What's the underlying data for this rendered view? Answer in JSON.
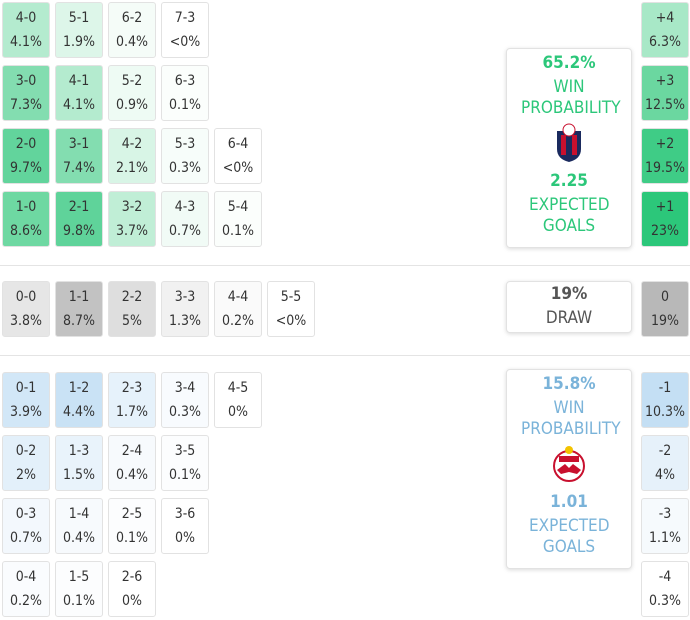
{
  "home": {
    "win_probability": "65.2%",
    "win_label": "WIN PROBABILITY",
    "expected_goals": "2.25",
    "xg_label": "EXPECTED GOALS",
    "rows": [
      [
        {
          "score": "4-0",
          "prob": "4.1%",
          "color": "#b4ebcf"
        },
        {
          "score": "5-1",
          "prob": "1.9%",
          "color": "#ddf6e9"
        },
        {
          "score": "6-2",
          "prob": "0.4%",
          "color": "#f5fcf8"
        },
        {
          "score": "7-3",
          "prob": "<0%",
          "color": "#ffffff"
        }
      ],
      [
        {
          "score": "3-0",
          "prob": "7.3%",
          "color": "#83ddb0"
        },
        {
          "score": "4-1",
          "prob": "4.1%",
          "color": "#b4ebcf"
        },
        {
          "score": "5-2",
          "prob": "0.9%",
          "color": "#eefbf4"
        },
        {
          "score": "6-3",
          "prob": "0.1%",
          "color": "#fbfefc"
        }
      ],
      [
        {
          "score": "2-0",
          "prob": "9.7%",
          "color": "#62d49c"
        },
        {
          "score": "3-1",
          "prob": "7.4%",
          "color": "#83ddb0"
        },
        {
          "score": "4-2",
          "prob": "2.1%",
          "color": "#d8f5e6"
        },
        {
          "score": "5-3",
          "prob": "0.3%",
          "color": "#f7fdfa"
        },
        {
          "score": "6-4",
          "prob": "<0%",
          "color": "#ffffff"
        }
      ],
      [
        {
          "score": "1-0",
          "prob": "8.6%",
          "color": "#6ed8a2"
        },
        {
          "score": "2-1",
          "prob": "9.8%",
          "color": "#5fd39a"
        },
        {
          "score": "3-2",
          "prob": "3.7%",
          "color": "#c0eed6"
        },
        {
          "score": "4-3",
          "prob": "0.7%",
          "color": "#f1fbf6"
        },
        {
          "score": "5-4",
          "prob": "0.1%",
          "color": "#fbfefc"
        }
      ]
    ],
    "margins": [
      {
        "score": "+4",
        "prob": "6.3%",
        "color": "#a8e8c7"
      },
      {
        "score": "+3",
        "prob": "12.5%",
        "color": "#6bd7a0"
      },
      {
        "score": "+2",
        "prob": "19.5%",
        "color": "#3fcc86"
      },
      {
        "score": "+1",
        "prob": "23%",
        "color": "#2cc77a"
      }
    ]
  },
  "draw": {
    "probability": "19%",
    "label": "DRAW",
    "rows": [
      [
        {
          "score": "0-0",
          "prob": "3.8%",
          "color": "#e6e6e6"
        },
        {
          "score": "1-1",
          "prob": "8.7%",
          "color": "#c2c2c2"
        },
        {
          "score": "2-2",
          "prob": "5%",
          "color": "#dedede"
        },
        {
          "score": "3-3",
          "prob": "1.3%",
          "color": "#f1f1f1"
        },
        {
          "score": "4-4",
          "prob": "0.2%",
          "color": "#fafafa"
        },
        {
          "score": "5-5",
          "prob": "<0%",
          "color": "#ffffff"
        }
      ]
    ],
    "margins": [
      {
        "score": "0",
        "prob": "19%",
        "color": "#b8b8b8"
      }
    ]
  },
  "away": {
    "win_probability": "15.8%",
    "win_label": "WIN PROBABILITY",
    "expected_goals": "1.01",
    "xg_label": "EXPECTED GOALS",
    "rows": [
      [
        {
          "score": "0-1",
          "prob": "3.9%",
          "color": "#d2e7f7"
        },
        {
          "score": "1-2",
          "prob": "4.4%",
          "color": "#c9e2f5"
        },
        {
          "score": "2-3",
          "prob": "1.7%",
          "color": "#e6f2fb"
        },
        {
          "score": "3-4",
          "prob": "0.3%",
          "color": "#f8fbfe"
        },
        {
          "score": "4-5",
          "prob": "0%",
          "color": "#ffffff"
        }
      ],
      [
        {
          "score": "0-2",
          "prob": "2%",
          "color": "#e3f0fa"
        },
        {
          "score": "1-3",
          "prob": "1.5%",
          "color": "#e9f3fb"
        },
        {
          "score": "2-4",
          "prob": "0.4%",
          "color": "#f7fafd"
        },
        {
          "score": "3-5",
          "prob": "0.1%",
          "color": "#fcfdfe"
        }
      ],
      [
        {
          "score": "0-3",
          "prob": "0.7%",
          "color": "#f3f8fd"
        },
        {
          "score": "1-4",
          "prob": "0.4%",
          "color": "#f7fafd"
        },
        {
          "score": "2-5",
          "prob": "0.1%",
          "color": "#fcfdfe"
        },
        {
          "score": "3-6",
          "prob": "0%",
          "color": "#ffffff"
        }
      ],
      [
        {
          "score": "0-4",
          "prob": "0.2%",
          "color": "#fafcfe"
        },
        {
          "score": "1-5",
          "prob": "0.1%",
          "color": "#fcfdfe"
        },
        {
          "score": "2-6",
          "prob": "0%",
          "color": "#ffffff"
        }
      ]
    ],
    "margins": [
      {
        "score": "-1",
        "prob": "10.3%",
        "color": "#c4dff4"
      },
      {
        "score": "-2",
        "prob": "4%",
        "color": "#e6f1fa"
      },
      {
        "score": "-3",
        "prob": "1.1%",
        "color": "#f6fafd"
      },
      {
        "score": "-4",
        "prob": "0.3%",
        "color": "#ffffff"
      }
    ]
  }
}
